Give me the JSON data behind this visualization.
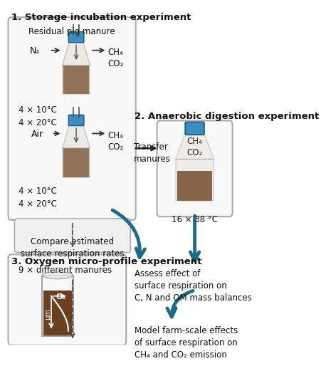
{
  "title": "1. Storage incubation experiment",
  "section2_title": "2. Anaerobic digestion experiment",
  "section3_title": "3. Oxygen micro-profile experiment",
  "box1_text_top": "Residual pig manure",
  "box1_n2": "N₂",
  "box1_ch4_co2_top": "CH₄\nCO₂",
  "box1_temps1": "4 × 10°C\n4 × 20°C",
  "box1_air": "Air",
  "box1_ch4_co2_bot": "CH₄\nCO₂",
  "box1_temps2": "4 × 10°C\n4 × 20°C",
  "compare_box": "Compare estimated\nsurface respiration rates",
  "transfer_text": "Transfer\nmanures",
  "box2_temp": "16 × 38 °C",
  "box2_ch4_co2": "CH₄\nCO₂",
  "assess_text": "Assess effect of\nsurface respiration on\nC, N and OM mass balances",
  "box3_text": "9 × different manures",
  "model_text": "Model farm-scale effects\nof surface respiration on\nCH₄ and CO₂ emission",
  "arrow_color": "#1d6b8a",
  "manure_color": "#6b4020",
  "bottle_glass": "#d8d0c0",
  "bottle_top_color": "#3a8fc0",
  "background": "#ffffff"
}
